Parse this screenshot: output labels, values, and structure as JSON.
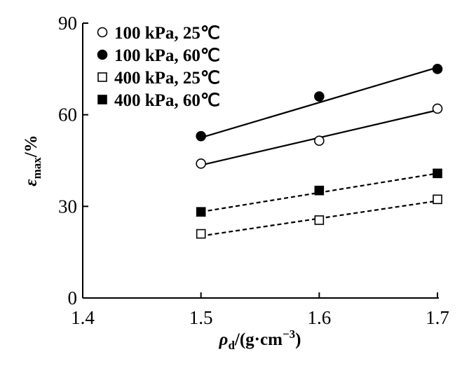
{
  "chart_data": {
    "type": "scatter",
    "xlabel": {
      "symbol": "ρ",
      "subscript": "d",
      "unit": "/(g·cm",
      "exponent": "−3",
      "closing": ")"
    },
    "ylabel": {
      "symbol": "ε",
      "subscript": "max",
      "unit": "/%"
    },
    "xlim": [
      1.4,
      1.7
    ],
    "ylim": [
      0,
      90
    ],
    "x_ticks": [
      "1.4",
      "1.5",
      "1.6",
      "1.7"
    ],
    "y_ticks": [
      "0",
      "30",
      "60",
      "90"
    ],
    "x_tick_values": [
      1.4,
      1.5,
      1.6,
      1.7
    ],
    "y_tick_values": [
      0,
      30,
      60,
      90
    ],
    "grid": false,
    "legend_position": "top-left",
    "series": [
      {
        "name": "100 kPa, 25℃",
        "marker": "circle-open",
        "line": "solid",
        "x": [
          1.5,
          1.6,
          1.7
        ],
        "y": [
          44,
          51.5,
          62
        ],
        "fit": [
          43.5,
          61.5
        ]
      },
      {
        "name": "100 kPa, 60℃",
        "marker": "circle-filled",
        "line": "solid",
        "x": [
          1.5,
          1.6,
          1.7
        ],
        "y": [
          53,
          66,
          75
        ],
        "fit": [
          52.5,
          75.5
        ]
      },
      {
        "name": "400 kPa, 25℃",
        "marker": "square-open",
        "line": "dashed",
        "x": [
          1.5,
          1.6,
          1.7
        ],
        "y": [
          21,
          25.5,
          32.3
        ],
        "fit": [
          20.3,
          31.8
        ]
      },
      {
        "name": "400 kPa, 60℃",
        "marker": "square-filled",
        "line": "dashed",
        "x": [
          1.5,
          1.6,
          1.7
        ],
        "y": [
          28.2,
          35.2,
          40.8
        ],
        "fit": [
          28.2,
          40.8
        ]
      }
    ]
  }
}
